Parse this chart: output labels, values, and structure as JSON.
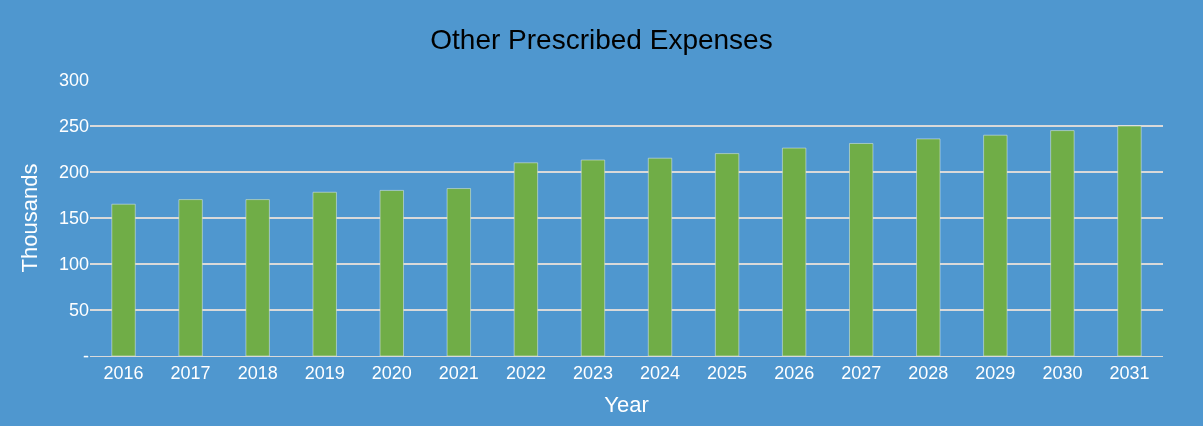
{
  "chart_data": {
    "type": "bar",
    "title": "Other Prescribed Expenses",
    "xlabel": "Year",
    "ylabel": "Thousands",
    "categories": [
      "2016",
      "2017",
      "2018",
      "2019",
      "2020",
      "2021",
      "2022",
      "2023",
      "2024",
      "2025",
      "2026",
      "2027",
      "2028",
      "2029",
      "2030",
      "2031"
    ],
    "values": [
      165,
      170,
      170,
      178,
      180,
      182,
      210,
      213,
      215,
      220,
      226,
      231,
      236,
      240,
      245,
      250
    ],
    "color": "#70ad47",
    "ylim": [
      0,
      300
    ],
    "yticks": [
      {
        "value": 0,
        "label": "-"
      },
      50,
      100,
      150,
      200,
      250,
      300
    ],
    "grid": "y",
    "legend": false
  }
}
